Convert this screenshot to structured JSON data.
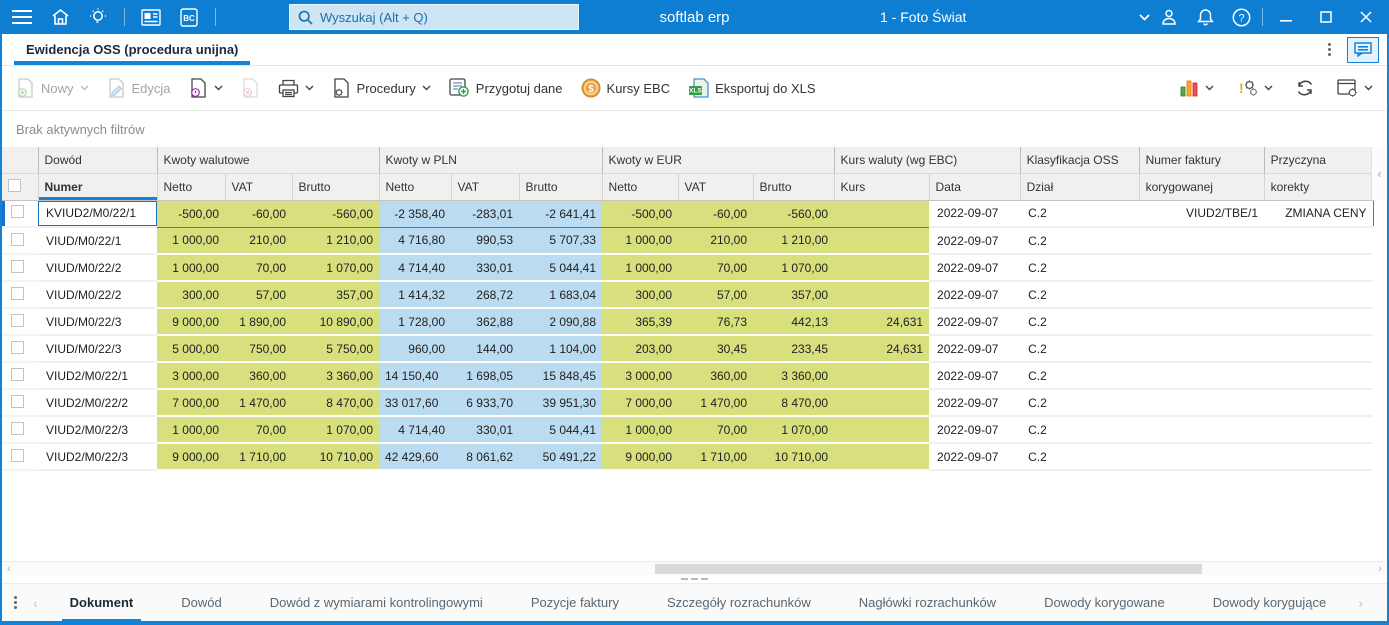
{
  "titlebar": {
    "app_name": "softlab erp",
    "search_placeholder": "Wyszukaj (Alt + Q)",
    "company": "1 - Foto Świat"
  },
  "document_tab": {
    "title": "Ewidencja OSS (procedura unijna)"
  },
  "toolbar": {
    "nowy": "Nowy",
    "edycja": "Edycja",
    "procedury": "Procedury",
    "przygotuj_dane": "Przygotuj dane",
    "kursy_ebc": "Kursy EBC",
    "eksportuj_xls": "Eksportuj do XLS"
  },
  "filter_bar": {
    "text": "Brak aktywnych filtrów"
  },
  "colors": {
    "accent": "#1283d8",
    "titlebar": "#0d7ed2",
    "cell_olive": "#d8df7d",
    "cell_blue": "#badbf0"
  },
  "table": {
    "groups": {
      "dowod": "Dowód",
      "walutowe": "Kwoty walutowe",
      "pln": "Kwoty w PLN",
      "eur": "Kwoty w EUR",
      "kurs": "Kurs waluty (wg EBC)",
      "klasyfikacja": "Klasyfikacja OSS",
      "faktura": "Numer faktury",
      "przyczyna": "Przyczyna"
    },
    "cols": {
      "numer": "Numer",
      "netto": "Netto",
      "vat": "VAT",
      "brutto": "Brutto",
      "kurs": "Kurs",
      "data": "Data",
      "dzial": "Dział",
      "faktura2": "korygowanej",
      "przyczyna2": "korekty"
    },
    "rows": [
      {
        "numer": "KVIUD2/M0/22/1",
        "wn": "-500,00",
        "wv": "-60,00",
        "wb": "-560,00",
        "pn": "-2 358,40",
        "pv": "-283,01",
        "pb": "-2 641,41",
        "en": "-500,00",
        "ev": "-60,00",
        "eb": "-560,00",
        "kurs": "",
        "data": "2022-09-07",
        "dzial": "C.2",
        "faktura": "VIUD2/TBE/1",
        "przyczyna": "ZMIANA CENY",
        "selected": true
      },
      {
        "numer": "VIUD/M0/22/1",
        "wn": "1 000,00",
        "wv": "210,00",
        "wb": "1 210,00",
        "pn": "4 716,80",
        "pv": "990,53",
        "pb": "5 707,33",
        "en": "1 000,00",
        "ev": "210,00",
        "eb": "1 210,00",
        "kurs": "",
        "data": "2022-09-07",
        "dzial": "C.2",
        "faktura": "",
        "przyczyna": ""
      },
      {
        "numer": "VIUD/M0/22/2",
        "wn": "1 000,00",
        "wv": "70,00",
        "wb": "1 070,00",
        "pn": "4 714,40",
        "pv": "330,01",
        "pb": "5 044,41",
        "en": "1 000,00",
        "ev": "70,00",
        "eb": "1 070,00",
        "kurs": "",
        "data": "2022-09-07",
        "dzial": "C.2",
        "faktura": "",
        "przyczyna": ""
      },
      {
        "numer": "VIUD/M0/22/2",
        "wn": "300,00",
        "wv": "57,00",
        "wb": "357,00",
        "pn": "1 414,32",
        "pv": "268,72",
        "pb": "1 683,04",
        "en": "300,00",
        "ev": "57,00",
        "eb": "357,00",
        "kurs": "",
        "data": "2022-09-07",
        "dzial": "C.2",
        "faktura": "",
        "przyczyna": ""
      },
      {
        "numer": "VIUD/M0/22/3",
        "wn": "9 000,00",
        "wv": "1 890,00",
        "wb": "10 890,00",
        "pn": "1 728,00",
        "pv": "362,88",
        "pb": "2 090,88",
        "en": "365,39",
        "ev": "76,73",
        "eb": "442,13",
        "kurs": "24,631",
        "data": "2022-09-07",
        "dzial": "C.2",
        "faktura": "",
        "przyczyna": ""
      },
      {
        "numer": "VIUD/M0/22/3",
        "wn": "5 000,00",
        "wv": "750,00",
        "wb": "5 750,00",
        "pn": "960,00",
        "pv": "144,00",
        "pb": "1 104,00",
        "en": "203,00",
        "ev": "30,45",
        "eb": "233,45",
        "kurs": "24,631",
        "data": "2022-09-07",
        "dzial": "C.2",
        "faktura": "",
        "przyczyna": ""
      },
      {
        "numer": "VIUD2/M0/22/1",
        "wn": "3 000,00",
        "wv": "360,00",
        "wb": "3 360,00",
        "pn": "14 150,40",
        "pv": "1 698,05",
        "pb": "15 848,45",
        "en": "3 000,00",
        "ev": "360,00",
        "eb": "3 360,00",
        "kurs": "",
        "data": "2022-09-07",
        "dzial": "C.2",
        "faktura": "",
        "przyczyna": "",
        "clip": [
          "pn"
        ]
      },
      {
        "numer": "VIUD2/M0/22/2",
        "wn": "7 000,00",
        "wv": "1 470,00",
        "wb": "8 470,00",
        "pn": "33 017,60",
        "pv": "6 933,70",
        "pb": "39 951,30",
        "en": "7 000,00",
        "ev": "1 470,00",
        "eb": "8 470,00",
        "kurs": "",
        "data": "2022-09-07",
        "dzial": "C.2",
        "faktura": "",
        "przyczyna": "",
        "clip": [
          "pn"
        ]
      },
      {
        "numer": "VIUD2/M0/22/3",
        "wn": "1 000,00",
        "wv": "70,00",
        "wb": "1 070,00",
        "pn": "4 714,40",
        "pv": "330,01",
        "pb": "5 044,41",
        "en": "1 000,00",
        "ev": "70,00",
        "eb": "1 070,00",
        "kurs": "",
        "data": "2022-09-07",
        "dzial": "C.2",
        "faktura": "",
        "przyczyna": ""
      },
      {
        "numer": "VIUD2/M0/22/3",
        "wn": "9 000,00",
        "wv": "1 710,00",
        "wb": "10 710,00",
        "pn": "42 429,60",
        "pv": "8 061,62",
        "pb": "50 491,22",
        "en": "9 000,00",
        "ev": "1 710,00",
        "eb": "10 710,00",
        "kurs": "",
        "data": "2022-09-07",
        "dzial": "C.2",
        "faktura": "",
        "przyczyna": "",
        "clip": [
          "pn"
        ]
      }
    ]
  },
  "bottom_tabs": {
    "items": [
      "Dokument",
      "Dowód",
      "Dowód z wymiarami kontrolingowymi",
      "Pozycje faktury",
      "Szczegóły rozrachunków",
      "Nagłówki rozrachunków",
      "Dowody korygowane",
      "Dowody korygujące"
    ],
    "active": "Dokument"
  }
}
